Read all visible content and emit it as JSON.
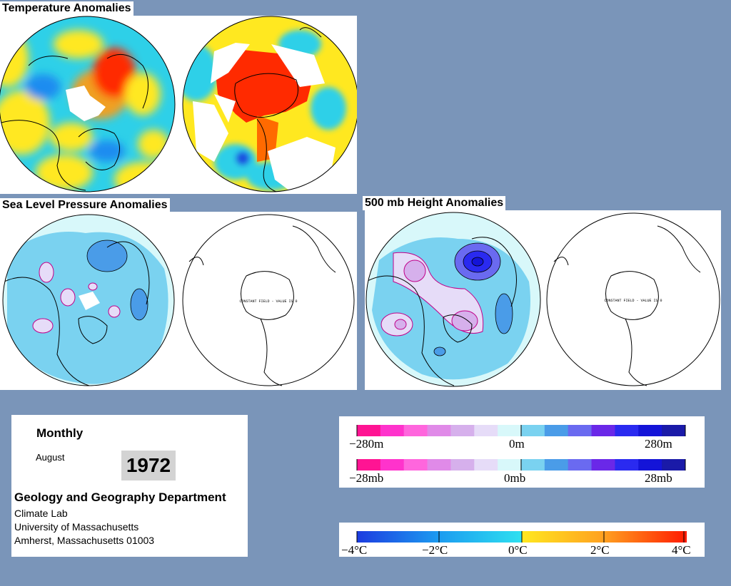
{
  "titles": {
    "temperature": "Temperature Anomalies",
    "slp": "Sea Level Pressure Anomalies",
    "height500": "500 mb Height Anomalies"
  },
  "maps": {
    "constant_field_label": "CONSTANT FIELD - VALUE IS 0"
  },
  "info": {
    "period": "Monthly",
    "month": "August",
    "year": "1972",
    "department": "Geology and Geography Department",
    "lab": "Climate Lab",
    "university": "University of Massachusetts",
    "address": "Amherst, Massachusetts 01003"
  },
  "legends": {
    "height": {
      "ticks": [
        "−280m",
        "0m",
        "280m"
      ]
    },
    "pressure": {
      "ticks": [
        "−28mb",
        "0mb",
        "28mb"
      ]
    },
    "temperature": {
      "ticks": [
        "−4°C",
        "−2°C",
        "0°C",
        "2°C",
        "4°C"
      ]
    }
  },
  "colors": {
    "background": "#7a95b9",
    "anomaly_scale_neg_to_pos": [
      "#ff1493",
      "#ff33cc",
      "#ff66dd",
      "#e08ae8",
      "#d6b0ec",
      "#e6dcf8",
      "#d8f8fa",
      "#7ad2f0",
      "#4a9ce8",
      "#6a6af0",
      "#6a28e8",
      "#2a2af0",
      "#1414d8",
      "#1a1aa8"
    ],
    "temp_cold": "#1c6cf0",
    "temp_neutral": "#2ed0e8",
    "temp_warm": "#ffe820",
    "temp_hot": "#ff2a00"
  }
}
